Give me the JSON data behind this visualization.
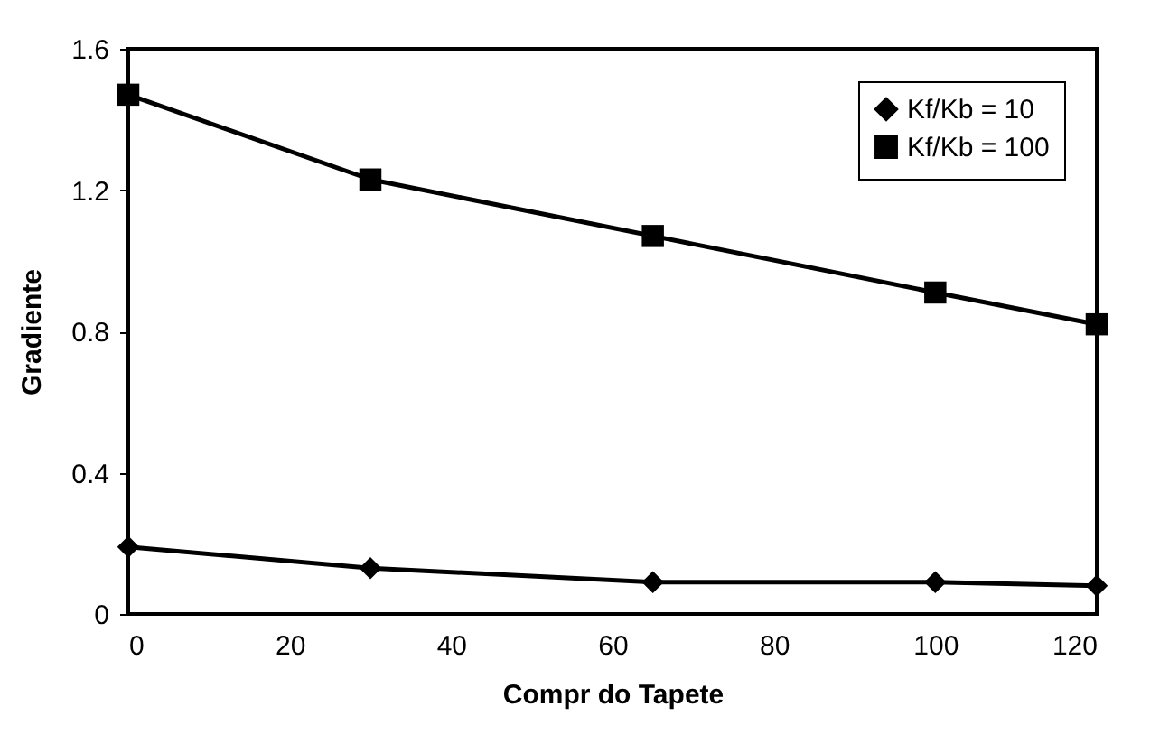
{
  "chart_data": {
    "type": "line",
    "xlabel": "Compr do Tapete",
    "ylabel": "Gradiente",
    "xlim": [
      0,
      120
    ],
    "xticks": [
      0,
      20,
      40,
      60,
      80,
      100,
      120
    ],
    "ylim": [
      0,
      1.6
    ],
    "yticks": [
      0,
      0.4,
      0.8,
      1.2,
      1.6
    ],
    "x": [
      0,
      30,
      65,
      100,
      120
    ],
    "series": [
      {
        "name": "Kf/Kb = 10",
        "color": "#000000",
        "marker": "diamond",
        "values": [
          0.19,
          0.13,
          0.09,
          0.09,
          0.08
        ]
      },
      {
        "name": "Kf/Kb = 100",
        "color": "#000000",
        "marker": "square",
        "values": [
          1.47,
          1.23,
          1.07,
          0.91,
          0.82
        ]
      }
    ],
    "grid": false,
    "legend": "top right",
    "line_style": "solid"
  }
}
